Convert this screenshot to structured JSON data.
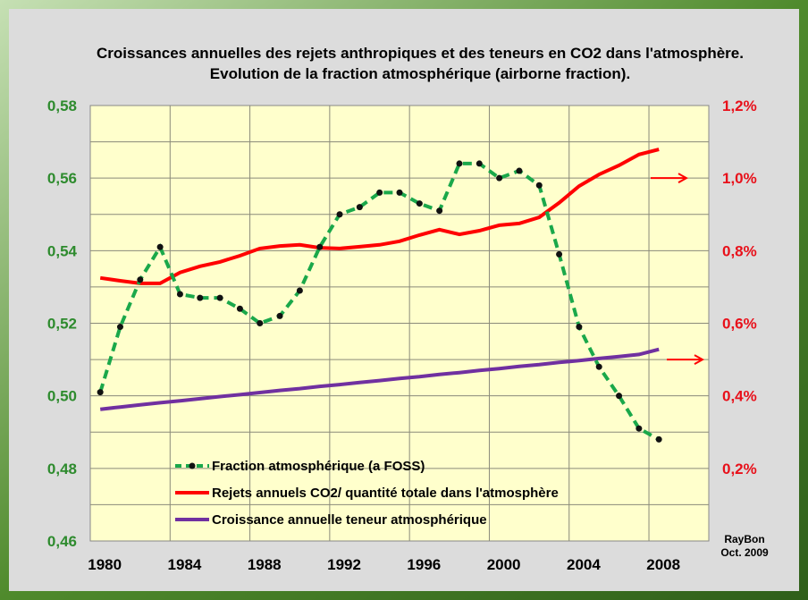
{
  "chart_data": {
    "type": "line",
    "title": "Croissances annuelles des rejets anthropiques  et des  teneurs en CO2 dans l'atmosphère.",
    "subtitle": "Evolution de la fraction atmosphérique (airborne fraction).",
    "x": [
      1980,
      1981,
      1982,
      1983,
      1984,
      1985,
      1986,
      1987,
      1988,
      1989,
      1990,
      1991,
      1992,
      1993,
      1994,
      1995,
      1996,
      1997,
      1998,
      1999,
      2000,
      2001,
      2002,
      2003,
      2004,
      2005,
      2006,
      2007,
      2008
    ],
    "x_tick_labels": [
      "1980",
      "1984",
      "1988",
      "1992",
      "1996",
      "2000",
      "2004",
      "2008"
    ],
    "x_range": [
      1980,
      2010
    ],
    "y_left": {
      "range": [
        0.46,
        0.58
      ],
      "tick_labels": [
        "0,46",
        "0,48",
        "0,50",
        "0,52",
        "0,54",
        "0,56",
        "0,58"
      ],
      "color": "#2e8b2e"
    },
    "y_right": {
      "range": [
        0,
        1.2
      ],
      "unit": "%",
      "tick_labels": [
        "0,2%",
        "0,4%",
        "0,6%",
        "0,8%",
        "1,0%",
        "1,2%"
      ],
      "color": "#e8101a"
    },
    "grid": true,
    "legend_placement": "bottom-left inside plot",
    "series": [
      {
        "name": "Fraction atmosphérique (a FOSS)",
        "axis": "left",
        "color": "#1aa84a",
        "style": "dashed-markers",
        "values": [
          0.501,
          0.519,
          0.532,
          0.541,
          0.528,
          0.527,
          0.527,
          0.524,
          0.52,
          0.522,
          0.529,
          0.541,
          0.55,
          0.552,
          0.556,
          0.556,
          0.553,
          0.551,
          0.564,
          0.564,
          0.56,
          0.562,
          0.558,
          0.539,
          0.519,
          0.508,
          0.5,
          0.491,
          0.488
        ]
      },
      {
        "name": "Rejets annuels CO2/ quantité totale dans l'atmosphère",
        "axis": "right",
        "color": "#ff0000",
        "style": "solid",
        "values": [
          0.725,
          0.717,
          0.71,
          0.71,
          0.74,
          0.757,
          0.769,
          0.786,
          0.806,
          0.813,
          0.816,
          0.808,
          0.806,
          0.811,
          0.816,
          0.826,
          0.843,
          0.858,
          0.845,
          0.855,
          0.87,
          0.875,
          0.892,
          0.932,
          0.978,
          1.01,
          1.035,
          1.065,
          1.079
        ]
      },
      {
        "name": "Croissance annuelle teneur atmosphérique",
        "axis": "right",
        "color": "#7030a0",
        "style": "solid",
        "values": [
          0.363,
          0.369,
          0.375,
          0.381,
          0.386,
          0.392,
          0.398,
          0.403,
          0.409,
          0.415,
          0.42,
          0.426,
          0.431,
          0.437,
          0.442,
          0.448,
          0.453,
          0.459,
          0.464,
          0.47,
          0.475,
          0.481,
          0.486,
          0.492,
          0.497,
          0.503,
          0.508,
          0.514,
          0.528
        ]
      }
    ],
    "annotations": [
      {
        "type": "arrow-right",
        "level_percent": 1.0,
        "color": "#ff0000"
      },
      {
        "type": "arrow-right",
        "level_percent": 0.5,
        "color": "#ff0000"
      }
    ],
    "signature": [
      "RayBon",
      "Oct. 2009"
    ]
  }
}
